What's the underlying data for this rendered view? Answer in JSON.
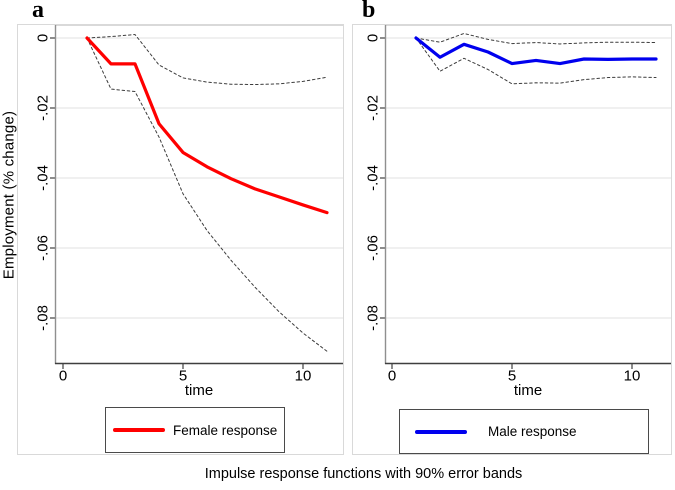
{
  "figure": {
    "ylabel": "Employment (% change)",
    "caption": "Impulse response functions with 90% error bands"
  },
  "colors": {
    "female": "#ff0000",
    "male": "#0000ee",
    "band": "#3c3c3c",
    "grid": "#e8e8e8",
    "axis_light": "#8f8f8f",
    "axis_dark": "#3f3f3f",
    "panel_border": "#d9d9d9"
  },
  "chart_data": [
    {
      "type": "line",
      "panel_label": "a",
      "xlabel": "time",
      "legend_label": "Female response",
      "x": [
        1,
        2,
        3,
        4,
        5,
        6,
        7,
        8,
        9,
        10,
        11
      ],
      "series": [
        {
          "name": "Female response",
          "color": "female",
          "dash": false,
          "values": [
            0,
            -0.0074,
            -0.0074,
            -0.0245,
            -0.0327,
            -0.0368,
            -0.0402,
            -0.0431,
            -0.0454,
            -0.0477,
            -0.0499
          ]
        },
        {
          "name": "upper 90% error band",
          "color": "band",
          "dash": true,
          "values": [
            0,
            0.0004,
            0.001,
            -0.0077,
            -0.0114,
            -0.0126,
            -0.0132,
            -0.0133,
            -0.0131,
            -0.0124,
            -0.0112
          ]
        },
        {
          "name": "lower 90% error band",
          "color": "band",
          "dash": true,
          "values": [
            0,
            -0.0146,
            -0.0153,
            -0.0283,
            -0.0445,
            -0.055,
            -0.0635,
            -0.0712,
            -0.0782,
            -0.0843,
            -0.0895
          ]
        }
      ],
      "x_tick_values": [
        0,
        5,
        10
      ],
      "x_tick_labels": [
        "0",
        "5",
        "10"
      ],
      "y_tick_values": [
        0,
        -0.02,
        -0.04,
        -0.06,
        -0.08
      ],
      "y_tick_labels": [
        "0",
        "-.02",
        "-.04",
        "-.06",
        "-.08"
      ],
      "xlim": [
        -0.35,
        11.7
      ],
      "ylim": [
        -0.093,
        0.0037
      ],
      "grid": "horizontal"
    },
    {
      "type": "line",
      "panel_label": "b",
      "xlabel": "time",
      "legend_label": "Male response",
      "x": [
        1,
        2,
        3,
        4,
        5,
        6,
        7,
        8,
        9,
        10,
        11
      ],
      "series": [
        {
          "name": "Male response",
          "color": "male",
          "dash": false,
          "values": [
            0,
            -0.0055,
            -0.0018,
            -0.004,
            -0.0073,
            -0.0064,
            -0.0073,
            -0.006,
            -0.0061,
            -0.006,
            -0.006
          ]
        },
        {
          "name": "upper 90% error band",
          "color": "band",
          "dash": true,
          "values": [
            0,
            -0.0012,
            0.0013,
            -0.0004,
            -0.0016,
            -0.0013,
            -0.0017,
            -0.0014,
            -0.0012,
            -0.0012,
            -0.0013
          ]
        },
        {
          "name": "lower 90% error band",
          "color": "band",
          "dash": true,
          "values": [
            0,
            -0.0095,
            -0.0058,
            -0.009,
            -0.0131,
            -0.0128,
            -0.0129,
            -0.0119,
            -0.0113,
            -0.0111,
            -0.0113
          ]
        }
      ],
      "x_tick_values": [
        0,
        5,
        10
      ],
      "x_tick_labels": [
        "0",
        "5",
        "10"
      ],
      "y_tick_values": [
        0,
        -0.02,
        -0.04,
        -0.06,
        -0.08
      ],
      "y_tick_labels": [
        "0",
        "-.02",
        "-.04",
        "-.06",
        "-.08"
      ],
      "xlim": [
        -0.3,
        11.6
      ],
      "ylim": [
        -0.093,
        0.0037
      ],
      "grid": "horizontal"
    }
  ]
}
